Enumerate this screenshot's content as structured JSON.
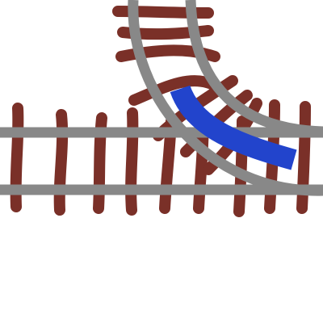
{
  "tile": {
    "kind": "track-junction-tile",
    "pieces": [
      "straight-track",
      "curved-track",
      "selected-route"
    ]
  },
  "colors": {
    "background": "#ffffff",
    "rail": "#888888",
    "tie": "#7a3028",
    "route_highlight": "#2244cc"
  }
}
